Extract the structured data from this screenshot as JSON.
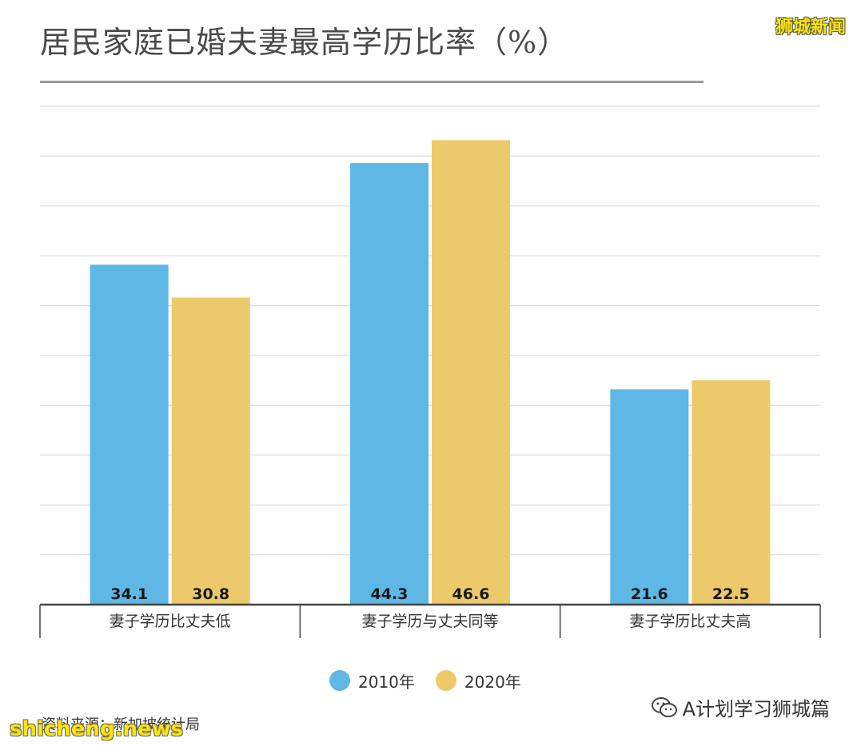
{
  "title": "居民家庭已婚夫妻最高学历比率（%）",
  "brand_top": "狮城新闻",
  "source_text": "资料来源：新加坡统计局",
  "watermark_left": "shicheng.news",
  "watermark_right": "A计划学习狮城篇",
  "wechat_icon": "wechat-icon",
  "chart_data": {
    "type": "bar",
    "categories": [
      "妻子学历比丈夫低",
      "妻子学历与丈夫同等",
      "妻子学历比丈夫高"
    ],
    "series": [
      {
        "name": "2010年",
        "values": [
          34.1,
          44.3,
          21.6
        ],
        "color": "#5eb7e5"
      },
      {
        "name": "2020年",
        "values": [
          30.8,
          46.6,
          22.5
        ],
        "color": "#ecca6b"
      }
    ],
    "title": "居民家庭已婚夫妻最高学历比率（%）",
    "xlabel": "",
    "ylabel": "",
    "ylim": [
      0,
      50
    ],
    "grid": true,
    "legend_position": "bottom-center",
    "data_labels": true
  }
}
